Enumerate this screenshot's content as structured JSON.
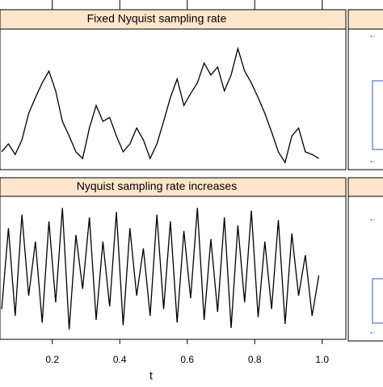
{
  "chart_data": [
    {
      "type": "line",
      "title": "Fixed  Nyquist sampling rate",
      "color": "#000000",
      "x": [
        0.05,
        0.07,
        0.09,
        0.11,
        0.13,
        0.15,
        0.17,
        0.19,
        0.21,
        0.23,
        0.25,
        0.27,
        0.29,
        0.31,
        0.33,
        0.35,
        0.37,
        0.39,
        0.41,
        0.43,
        0.45,
        0.47,
        0.49,
        0.51,
        0.53,
        0.55,
        0.57,
        0.59,
        0.61,
        0.63,
        0.65,
        0.67,
        0.69,
        0.71,
        0.73,
        0.75,
        0.77,
        0.79,
        0.81,
        0.83,
        0.85,
        0.87,
        0.89,
        0.91,
        0.93,
        0.95,
        0.97,
        0.99
      ],
      "values": [
        11,
        17,
        9,
        20,
        40,
        52,
        63,
        72,
        57,
        34,
        23,
        11,
        6,
        29,
        46,
        34,
        37,
        23,
        11,
        17,
        29,
        20,
        6,
        17,
        34,
        52,
        66,
        46,
        55,
        63,
        78,
        69,
        75,
        57,
        69,
        89,
        72,
        63,
        52,
        40,
        26,
        11,
        3,
        23,
        29,
        11,
        9,
        6
      ],
      "xlim": [
        0.045,
        1.07
      ],
      "ylim": [
        0,
        100
      ]
    },
    {
      "type": "line",
      "title": "Nyquist sampling rate increases",
      "color": "#000000",
      "xlabel": "t",
      "x": [
        0.05,
        0.07,
        0.09,
        0.11,
        0.13,
        0.15,
        0.17,
        0.19,
        0.21,
        0.23,
        0.25,
        0.27,
        0.29,
        0.31,
        0.33,
        0.35,
        0.37,
        0.39,
        0.41,
        0.43,
        0.45,
        0.47,
        0.49,
        0.51,
        0.53,
        0.55,
        0.57,
        0.59,
        0.61,
        0.63,
        0.65,
        0.67,
        0.69,
        0.71,
        0.73,
        0.75,
        0.77,
        0.79,
        0.81,
        0.83,
        0.85,
        0.87,
        0.89,
        0.91,
        0.93,
        0.95,
        0.97,
        0.99
      ],
      "values": [
        20,
        80,
        15,
        90,
        30,
        70,
        10,
        85,
        25,
        95,
        5,
        75,
        35,
        88,
        12,
        70,
        22,
        92,
        8,
        80,
        30,
        65,
        15,
        90,
        20,
        85,
        10,
        78,
        28,
        95,
        12,
        72,
        18,
        88,
        6,
        82,
        25,
        93,
        14,
        70,
        20,
        86,
        9,
        76,
        30,
        60,
        15,
        45
      ],
      "xlim": [
        0.045,
        1.07
      ],
      "ylim": [
        0,
        100
      ],
      "xticks": [
        0.2,
        0.4,
        0.6,
        0.8,
        {
          "value": 1,
          "label": "1.0"
        }
      ]
    }
  ]
}
